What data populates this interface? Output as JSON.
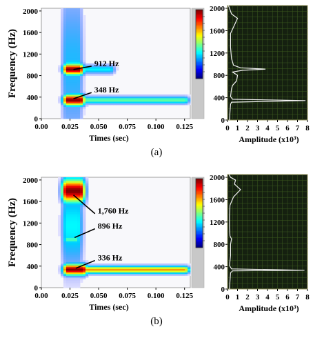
{
  "chart_data": [
    {
      "id": "a",
      "type": "heatmap",
      "caption": "(a)",
      "xlabel": "Times (sec)",
      "ylabel": "Frequency (Hz)",
      "xlim": [
        0,
        0.13
      ],
      "ylim": [
        0,
        2050
      ],
      "x_ticks": [
        "0.00",
        "0.025",
        "0.050",
        "0.075",
        "0.100",
        "0.125"
      ],
      "x_tick_values": [
        0,
        0.025,
        0.05,
        0.075,
        0.1,
        0.125
      ],
      "y_ticks": [
        "0",
        "400",
        "800",
        "1200",
        "1600",
        "2000"
      ],
      "y_tick_values": [
        0,
        400,
        800,
        1200,
        1600,
        2000
      ],
      "blobs": [
        {
          "t0": 0.022,
          "t1": 0.032,
          "f": 1000,
          "fw": 1000,
          "amp": 0.22
        },
        {
          "t0": 0.023,
          "t1": 0.033,
          "f": 920,
          "fw": 70,
          "amp": 1.0
        },
        {
          "t0": 0.033,
          "t1": 0.06,
          "f": 920,
          "fw": 55,
          "amp": 0.3
        },
        {
          "t0": 0.023,
          "t1": 0.034,
          "f": 350,
          "fw": 70,
          "amp": 1.0
        },
        {
          "t0": 0.034,
          "t1": 0.125,
          "f": 348,
          "fw": 45,
          "amp": 0.42
        },
        {
          "t0": 0.023,
          "t1": 0.032,
          "f": 1000,
          "fw": 130,
          "amp": 0.3
        }
      ],
      "annotations": [
        {
          "text": "912 Hz",
          "tx": 0.045,
          "tf": 1000,
          "px": 0.028,
          "pf": 912
        },
        {
          "text": "348 Hz",
          "tx": 0.045,
          "tf": 510,
          "px": 0.028,
          "pf": 370
        }
      ],
      "spectrum": {
        "xlabel": "Amplitude (x10³)",
        "x_ticks": [
          "0",
          "1",
          "2",
          "3",
          "4",
          "5",
          "6",
          "7",
          "8"
        ],
        "xlim": [
          0,
          8
        ],
        "y_ticks": [
          "0",
          "400",
          "800",
          "1200",
          "1600",
          "2000"
        ],
        "ylim": [
          0,
          2050
        ],
        "points": [
          [
            0.2,
            0
          ],
          [
            0.25,
            150
          ],
          [
            0.3,
            280
          ],
          [
            0.4,
            320
          ],
          [
            7.8,
            348
          ],
          [
            0.5,
            372
          ],
          [
            0.3,
            420
          ],
          [
            0.4,
            560
          ],
          [
            0.5,
            620
          ],
          [
            0.9,
            700
          ],
          [
            1.0,
            800
          ],
          [
            0.5,
            860
          ],
          [
            1.5,
            890
          ],
          [
            3.8,
            912
          ],
          [
            1.3,
            935
          ],
          [
            0.6,
            980
          ],
          [
            0.4,
            1100
          ],
          [
            0.3,
            1300
          ],
          [
            0.3,
            1550
          ],
          [
            0.7,
            1700
          ],
          [
            1.0,
            1820
          ],
          [
            0.4,
            1900
          ],
          [
            0.2,
            2000
          ],
          [
            0.1,
            2050
          ]
        ]
      }
    },
    {
      "id": "b",
      "type": "heatmap",
      "caption": "(b)",
      "xlabel": "Times (sec)",
      "ylabel": "Frequency (Hz)",
      "xlim": [
        0,
        0.13
      ],
      "ylim": [
        0,
        2050
      ],
      "x_ticks": [
        "0.00",
        "0.025",
        "0.050",
        "0.075",
        "0.100",
        "0.125"
      ],
      "x_tick_values": [
        0,
        0.025,
        0.05,
        0.075,
        0.1,
        0.125
      ],
      "y_ticks": [
        "0",
        "400",
        "800",
        "1200",
        "1600",
        "2000"
      ],
      "y_tick_values": [
        0,
        400,
        800,
        1200,
        1600,
        2000
      ],
      "blobs": [
        {
          "t0": 0.022,
          "t1": 0.032,
          "f": 1150,
          "fw": 550,
          "amp": 0.3
        },
        {
          "t0": 0.022,
          "t1": 0.034,
          "f": 1800,
          "fw": 150,
          "amp": 1.0
        },
        {
          "t0": 0.023,
          "t1": 0.03,
          "f": 896,
          "fw": 45,
          "amp": 0.4
        },
        {
          "t0": 0.023,
          "t1": 0.036,
          "f": 340,
          "fw": 70,
          "amp": 1.0
        },
        {
          "t0": 0.036,
          "t1": 0.125,
          "f": 336,
          "fw": 45,
          "amp": 0.7
        }
      ],
      "annotations": [
        {
          "text": "1,760 Hz",
          "tx": 0.048,
          "tf": 1400,
          "px": 0.028,
          "pf": 1720
        },
        {
          "text": "896 Hz",
          "tx": 0.048,
          "tf": 1120,
          "px": 0.029,
          "pf": 930
        },
        {
          "text": "336 Hz",
          "tx": 0.048,
          "tf": 530,
          "px": 0.03,
          "pf": 360
        }
      ],
      "spectrum": {
        "xlabel": "Amplitude (x10³)",
        "x_ticks": [
          "0",
          "1",
          "2",
          "3",
          "4",
          "5",
          "6",
          "7",
          "8"
        ],
        "xlim": [
          0,
          8
        ],
        "y_ticks": [
          "0",
          "400",
          "800",
          "1200",
          "1600",
          "2000"
        ],
        "ylim": [
          0,
          2050
        ],
        "points": [
          [
            0.2,
            0
          ],
          [
            0.25,
            150
          ],
          [
            0.3,
            290
          ],
          [
            0.5,
            325
          ],
          [
            7.7,
            336
          ],
          [
            0.4,
            360
          ],
          [
            0.2,
            420
          ],
          [
            0.3,
            600
          ],
          [
            0.3,
            800
          ],
          [
            0.4,
            896
          ],
          [
            0.25,
            950
          ],
          [
            0.2,
            1100
          ],
          [
            0.2,
            1300
          ],
          [
            0.25,
            1500
          ],
          [
            0.6,
            1650
          ],
          [
            1.3,
            1780
          ],
          [
            0.7,
            1880
          ],
          [
            0.8,
            1950
          ],
          [
            0.3,
            2000
          ],
          [
            0.15,
            2050
          ]
        ]
      }
    }
  ]
}
